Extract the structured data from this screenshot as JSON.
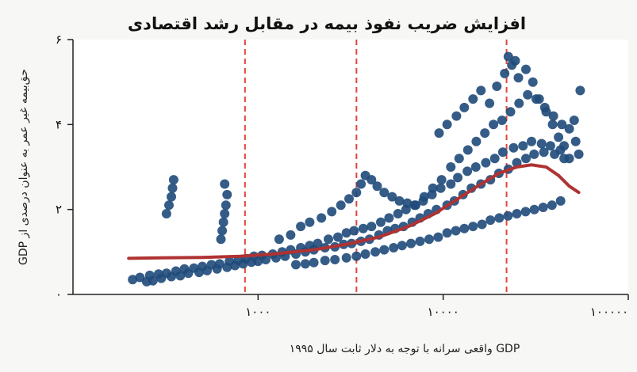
{
  "chart_data": {
    "type": "scatter",
    "title": "افزایش ضریب نفوذ بیمه در مقابل رشد اقتصادی",
    "xlabel": "GDP واقعی سرانه با توجه به دلار ثابت سال ۱۹۹۵",
    "ylabel": "حق‌بیمه غیر عمر به عنوان درصدی از GDP",
    "x_scale": "log",
    "xlim": [
      100,
      100000
    ],
    "ylim": [
      0,
      6
    ],
    "x_ticks": [
      {
        "value": 1000,
        "label": "۱۰۰۰"
      },
      {
        "value": 10000,
        "label": "۱۰۰۰۰"
      },
      {
        "value": 100000,
        "label": "۱۰۰۰۰۰"
      }
    ],
    "y_ticks": [
      {
        "value": 0,
        "label": "۰"
      },
      {
        "value": 2,
        "label": "۲"
      },
      {
        "value": 4,
        "label": "۴"
      },
      {
        "value": 6,
        "label": "۶"
      }
    ],
    "reference_lines_x": [
      850,
      3400,
      22000
    ],
    "scatter_points": [
      [
        210,
        0.35
      ],
      [
        230,
        0.4
      ],
      [
        260,
        0.45
      ],
      [
        290,
        0.48
      ],
      [
        320,
        0.5
      ],
      [
        360,
        0.55
      ],
      [
        400,
        0.6
      ],
      [
        450,
        0.62
      ],
      [
        500,
        0.66
      ],
      [
        560,
        0.7
      ],
      [
        620,
        0.72
      ],
      [
        700,
        0.78
      ],
      [
        780,
        0.8
      ],
      [
        860,
        0.84
      ],
      [
        950,
        0.9
      ],
      [
        1050,
        0.92
      ],
      [
        1200,
        0.95
      ],
      [
        1350,
        1.0
      ],
      [
        1500,
        1.05
      ],
      [
        1700,
        1.1
      ],
      [
        1900,
        1.15
      ],
      [
        2100,
        1.2
      ],
      [
        2400,
        1.3
      ],
      [
        2700,
        1.35
      ],
      [
        3000,
        1.45
      ],
      [
        3300,
        1.5
      ],
      [
        3700,
        1.55
      ],
      [
        4100,
        1.6
      ],
      [
        4600,
        1.7
      ],
      [
        5100,
        1.8
      ],
      [
        5700,
        1.9
      ],
      [
        6300,
        2.0
      ],
      [
        7000,
        2.1
      ],
      [
        7800,
        2.2
      ],
      [
        8700,
        2.35
      ],
      [
        9700,
        2.5
      ],
      [
        11000,
        2.6
      ],
      [
        12000,
        2.75
      ],
      [
        13500,
        2.9
      ],
      [
        15000,
        3.0
      ],
      [
        17000,
        3.1
      ],
      [
        19000,
        3.2
      ],
      [
        21000,
        3.35
      ],
      [
        24000,
        3.45
      ],
      [
        27000,
        3.5
      ],
      [
        30000,
        3.6
      ],
      [
        34000,
        3.55
      ],
      [
        38000,
        3.5
      ],
      [
        43000,
        3.4
      ],
      [
        48000,
        3.2
      ],
      [
        320,
        1.9
      ],
      [
        330,
        2.1
      ],
      [
        340,
        2.3
      ],
      [
        345,
        2.5
      ],
      [
        350,
        2.7
      ],
      [
        630,
        1.3
      ],
      [
        640,
        1.5
      ],
      [
        650,
        1.7
      ],
      [
        660,
        1.9
      ],
      [
        670,
        2.1
      ],
      [
        680,
        2.35
      ],
      [
        660,
        2.6
      ],
      [
        250,
        0.3
      ],
      [
        270,
        0.32
      ],
      [
        300,
        0.38
      ],
      [
        340,
        0.42
      ],
      [
        380,
        0.44
      ],
      [
        420,
        0.5
      ],
      [
        480,
        0.52
      ],
      [
        530,
        0.56
      ],
      [
        600,
        0.6
      ],
      [
        680,
        0.64
      ],
      [
        750,
        0.68
      ],
      [
        830,
        0.72
      ],
      [
        920,
        0.76
      ],
      [
        1000,
        0.78
      ],
      [
        1100,
        0.82
      ],
      [
        1250,
        0.86
      ],
      [
        1400,
        0.9
      ],
      [
        1600,
        0.95
      ],
      [
        1800,
        1.0
      ],
      [
        2000,
        1.05
      ],
      [
        2300,
        1.1
      ],
      [
        2600,
        1.12
      ],
      [
        2900,
        1.18
      ],
      [
        3200,
        1.2
      ],
      [
        3600,
        1.25
      ],
      [
        4000,
        1.3
      ],
      [
        4500,
        1.4
      ],
      [
        5000,
        1.5
      ],
      [
        5500,
        1.55
      ],
      [
        6100,
        1.6
      ],
      [
        6800,
        1.7
      ],
      [
        7500,
        1.8
      ],
      [
        8300,
        1.9
      ],
      [
        9200,
        2.0
      ],
      [
        10500,
        2.1
      ],
      [
        11500,
        2.2
      ],
      [
        12800,
        2.35
      ],
      [
        14200,
        2.5
      ],
      [
        16000,
        2.6
      ],
      [
        18000,
        2.7
      ],
      [
        20000,
        2.85
      ],
      [
        22500,
        2.95
      ],
      [
        25000,
        3.1
      ],
      [
        28000,
        3.2
      ],
      [
        31000,
        3.3
      ],
      [
        35000,
        3.35
      ],
      [
        40000,
        3.3
      ],
      [
        45000,
        3.2
      ],
      [
        1300,
        1.3
      ],
      [
        1500,
        1.4
      ],
      [
        1700,
        1.6
      ],
      [
        1900,
        1.7
      ],
      [
        2200,
        1.8
      ],
      [
        2500,
        1.95
      ],
      [
        2800,
        2.1
      ],
      [
        3100,
        2.25
      ],
      [
        3400,
        2.4
      ],
      [
        3600,
        2.6
      ],
      [
        3800,
        2.8
      ],
      [
        4100,
        2.7
      ],
      [
        4400,
        2.55
      ],
      [
        4800,
        2.4
      ],
      [
        5300,
        2.3
      ],
      [
        5800,
        2.2
      ],
      [
        6400,
        2.15
      ],
      [
        7100,
        2.1
      ],
      [
        7900,
        2.3
      ],
      [
        8800,
        2.5
      ],
      [
        9800,
        2.7
      ],
      [
        11000,
        3.0
      ],
      [
        12200,
        3.2
      ],
      [
        13600,
        3.4
      ],
      [
        15100,
        3.6
      ],
      [
        16800,
        3.8
      ],
      [
        18700,
        4.0
      ],
      [
        20800,
        4.1
      ],
      [
        23100,
        4.3
      ],
      [
        25700,
        4.5
      ],
      [
        28600,
        4.7
      ],
      [
        31800,
        4.6
      ],
      [
        35400,
        4.4
      ],
      [
        39400,
        4.2
      ],
      [
        43800,
        4.0
      ],
      [
        1600,
        0.7
      ],
      [
        1800,
        0.72
      ],
      [
        2000,
        0.75
      ],
      [
        2300,
        0.8
      ],
      [
        2600,
        0.82
      ],
      [
        3000,
        0.86
      ],
      [
        3400,
        0.9
      ],
      [
        3800,
        0.95
      ],
      [
        4300,
        1.0
      ],
      [
        4800,
        1.05
      ],
      [
        5400,
        1.1
      ],
      [
        6000,
        1.15
      ],
      [
        6700,
        1.2
      ],
      [
        7500,
        1.25
      ],
      [
        8400,
        1.3
      ],
      [
        9400,
        1.35
      ],
      [
        10500,
        1.45
      ],
      [
        11700,
        1.5
      ],
      [
        13000,
        1.55
      ],
      [
        14500,
        1.6
      ],
      [
        16200,
        1.65
      ],
      [
        18000,
        1.75
      ],
      [
        20100,
        1.8
      ],
      [
        22400,
        1.85
      ],
      [
        25000,
        1.9
      ],
      [
        27900,
        1.95
      ],
      [
        31100,
        2.0
      ],
      [
        34700,
        2.05
      ],
      [
        38700,
        2.1
      ],
      [
        43100,
        2.2
      ],
      [
        9500,
        3.8
      ],
      [
        10500,
        4.0
      ],
      [
        11800,
        4.2
      ],
      [
        13000,
        4.4
      ],
      [
        14500,
        4.6
      ],
      [
        16000,
        4.8
      ],
      [
        17800,
        4.5
      ],
      [
        19500,
        4.9
      ],
      [
        21500,
        5.2
      ],
      [
        23500,
        5.4
      ],
      [
        25500,
        5.1
      ],
      [
        28000,
        5.3
      ],
      [
        30500,
        5.0
      ],
      [
        33000,
        4.6
      ],
      [
        36000,
        4.3
      ],
      [
        39000,
        4.0
      ],
      [
        42000,
        3.7
      ],
      [
        45000,
        3.5
      ],
      [
        48000,
        3.9
      ],
      [
        51000,
        4.1
      ],
      [
        55000,
        4.8
      ],
      [
        22500,
        5.6
      ],
      [
        24500,
        5.5
      ],
      [
        52000,
        3.6
      ],
      [
        54000,
        3.3
      ]
    ],
    "trend_line": [
      [
        200,
        0.85
      ],
      [
        300,
        0.86
      ],
      [
        500,
        0.87
      ],
      [
        800,
        0.9
      ],
      [
        1200,
        0.95
      ],
      [
        2000,
        1.05
      ],
      [
        3000,
        1.18
      ],
      [
        4500,
        1.35
      ],
      [
        6500,
        1.6
      ],
      [
        9000,
        1.9
      ],
      [
        12000,
        2.25
      ],
      [
        16000,
        2.6
      ],
      [
        20000,
        2.85
      ],
      [
        25000,
        3.0
      ],
      [
        30000,
        3.05
      ],
      [
        36000,
        3.0
      ],
      [
        42000,
        2.8
      ],
      [
        48000,
        2.55
      ],
      [
        54000,
        2.4
      ]
    ],
    "colors": {
      "points": "#1f4a7a",
      "trend": "#b03232",
      "refline": "#e0453c",
      "axis": "#222222"
    },
    "grid": false,
    "legend": "none"
  }
}
